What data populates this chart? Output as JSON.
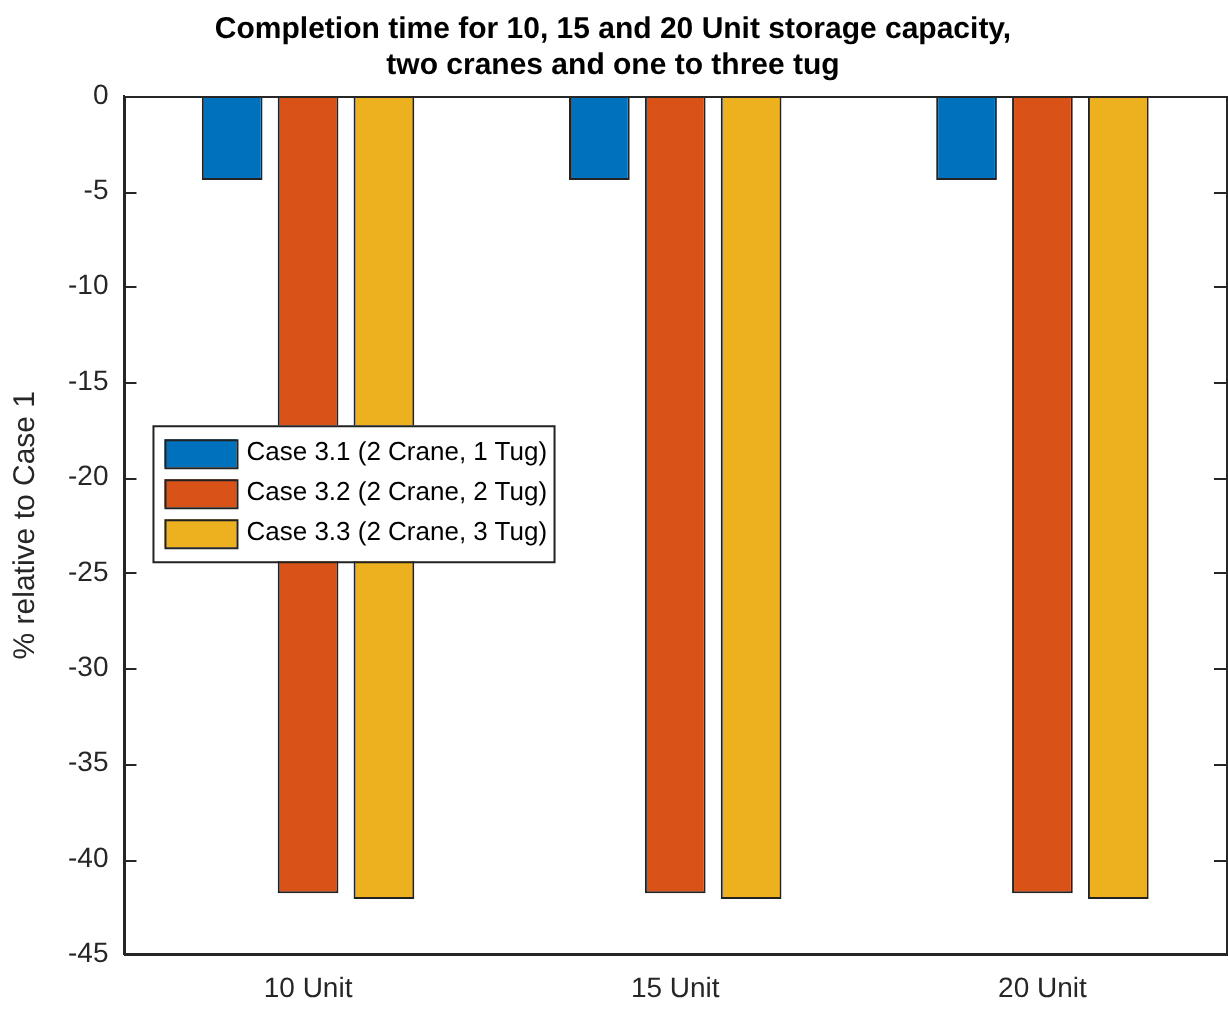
{
  "chart_data": {
    "type": "bar",
    "title": "Completion time for 10, 15 and 20 Unit storage capacity,\ntwo cranes and one to three tug",
    "ylabel": "% relative to Case 1",
    "categories": [
      "10 Unit",
      "15 Unit",
      "20 Unit"
    ],
    "series": [
      {
        "name": "Case 3.1 (2 Crane, 1 Tug)",
        "color": "#0072bd",
        "values": [
          -4.4,
          -4.4,
          -4.4
        ]
      },
      {
        "name": "Case 3.2 (2 Crane, 2 Tug)",
        "color": "#d95319",
        "values": [
          -41.8,
          -41.8,
          -41.8
        ]
      },
      {
        "name": "Case 3.3 (2 Crane, 3 Tug)",
        "color": "#edb120",
        "values": [
          -42.1,
          -42.1,
          -42.1
        ]
      }
    ],
    "ylim": [
      -45,
      0
    ],
    "yticks": [
      -45,
      -40,
      -35,
      -30,
      -25,
      -20,
      -15,
      -10,
      -5,
      0
    ],
    "grid": false,
    "legend": "left"
  }
}
